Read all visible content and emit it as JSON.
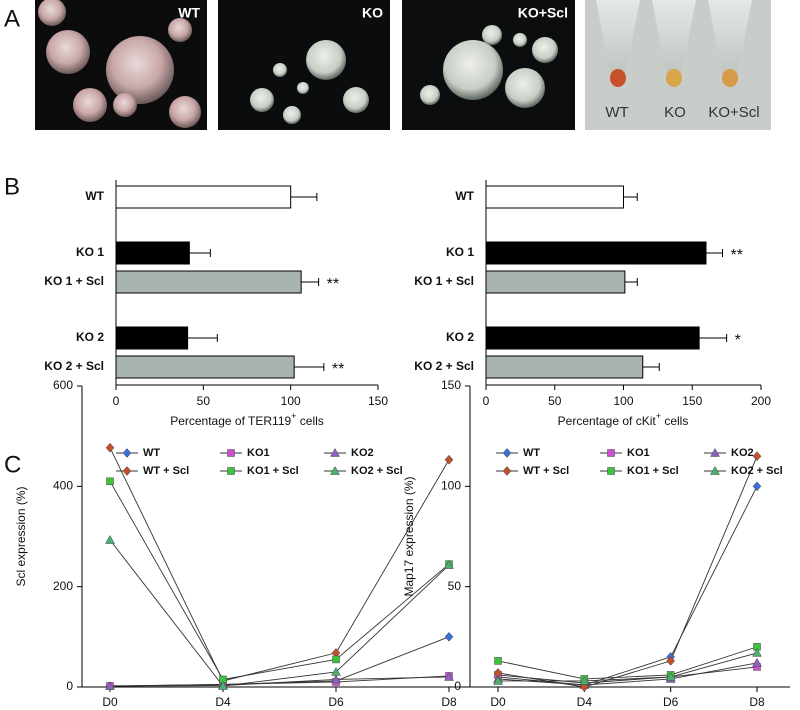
{
  "panel_letters": [
    "A",
    "B",
    "C"
  ],
  "panel_a": {
    "image_labels": [
      "WT",
      "KO",
      "KO+Scl"
    ],
    "tube_labels": [
      "WT",
      "KO",
      "KO+Scl"
    ]
  },
  "chart_data": [
    {
      "type": "hbar",
      "categories": [
        "WT",
        "KO 1",
        "KO 1 + Scl",
        "KO 2",
        "KO 2 + Scl"
      ],
      "values": [
        100,
        42,
        106,
        41,
        102
      ],
      "errors": [
        15,
        12,
        10,
        17,
        17
      ],
      "colors": [
        "#ffffff",
        "#000000",
        "#a9b4b2",
        "#000000",
        "#a9b4b2"
      ],
      "bar_labels": [
        null,
        null,
        "**",
        null,
        "**"
      ],
      "xlabel": [
        "Percentage of  TER119",
        "+",
        " cells"
      ],
      "xlim": [
        0,
        150
      ],
      "xticks": [
        0,
        50,
        100,
        150
      ]
    },
    {
      "type": "hbar",
      "categories": [
        "WT",
        "KO 1",
        "KO 1 + Scl",
        "KO 2",
        "KO 2 + Scl"
      ],
      "values": [
        100,
        160,
        101,
        155,
        114
      ],
      "errors": [
        10,
        12,
        9,
        20,
        12
      ],
      "colors": [
        "#ffffff",
        "#000000",
        "#a9b4b2",
        "#000000",
        "#a9b4b2"
      ],
      "bar_labels": [
        null,
        "**",
        null,
        "*",
        null
      ],
      "xlabel": [
        "Percentage of  cKit",
        "+",
        " cells"
      ],
      "xlim": [
        0,
        200
      ],
      "xticks": [
        0,
        50,
        100,
        150,
        200
      ]
    },
    {
      "type": "line",
      "ylabel": "Scl expression (%)",
      "categories": [
        "D0",
        "D4",
        "D6",
        "D8"
      ],
      "ylim": [
        0,
        600
      ],
      "yticks": [
        0,
        200,
        400,
        600
      ],
      "line_color": "#333333",
      "series": [
        {
          "name": "WT",
          "color": "#3a6fd8",
          "marker": "diamond",
          "values": [
            2,
            5,
            12,
            100
          ]
        },
        {
          "name": "KO1",
          "color": "#d04fd0",
          "marker": "square",
          "values": [
            2,
            5,
            10,
            22
          ]
        },
        {
          "name": "KO2",
          "color": "#9060c0",
          "marker": "triangle",
          "values": [
            2,
            3,
            15,
            20
          ]
        },
        {
          "name": "WT + Scl",
          "color": "#c0502e",
          "marker": "diamond",
          "values": [
            477,
            12,
            68,
            453
          ]
        },
        {
          "name": "KO1 + Scl",
          "color": "#3cc43c",
          "marker": "square",
          "values": [
            410,
            15,
            55,
            245
          ]
        },
        {
          "name": "KO2 + Scl",
          "color": "#4ab070",
          "marker": "triangle",
          "values": [
            293,
            2,
            30,
            243
          ]
        }
      ]
    },
    {
      "type": "line",
      "ylabel": "Map17 expression (%)",
      "categories": [
        "D0",
        "D4",
        "D6",
        "D8"
      ],
      "ylim": [
        0,
        150
      ],
      "yticks": [
        0,
        50,
        100,
        150
      ],
      "line_color": "#333333",
      "series": [
        {
          "name": "WT",
          "color": "#3a6fd8",
          "marker": "diamond",
          "values": [
            5,
            1,
            15,
            100
          ]
        },
        {
          "name": "KO1",
          "color": "#d04fd0",
          "marker": "square",
          "values": [
            6,
            2,
            5,
            10
          ]
        },
        {
          "name": "KO2",
          "color": "#9060c0",
          "marker": "triangle",
          "values": [
            4,
            1,
            4,
            12
          ]
        },
        {
          "name": "WT + Scl",
          "color": "#c0502e",
          "marker": "diamond",
          "values": [
            7,
            0,
            13,
            115
          ]
        },
        {
          "name": "KO1 + Scl",
          "color": "#3cc43c",
          "marker": "square",
          "values": [
            13,
            4,
            6,
            20
          ]
        },
        {
          "name": "KO2 + Scl",
          "color": "#4ab070",
          "marker": "triangle",
          "values": [
            3,
            3,
            5,
            17
          ]
        }
      ]
    }
  ]
}
